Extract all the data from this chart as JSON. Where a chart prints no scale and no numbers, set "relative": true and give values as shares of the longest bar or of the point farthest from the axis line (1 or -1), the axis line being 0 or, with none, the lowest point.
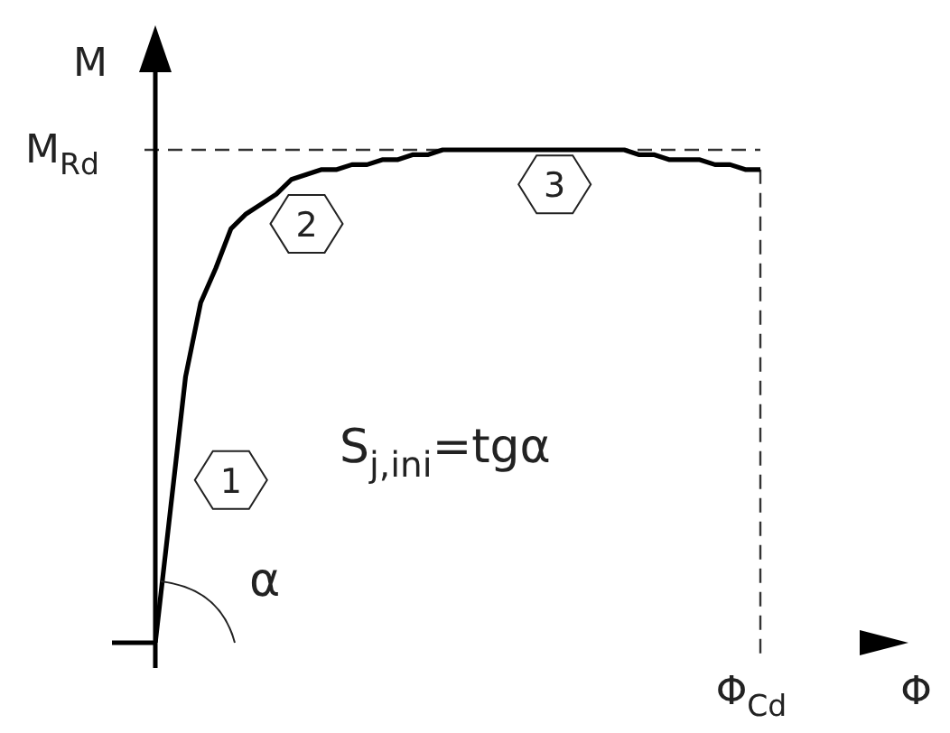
{
  "chart_data": {
    "type": "line",
    "relative": true,
    "xlabel": "Φ",
    "ylabel": "M",
    "categories": [
      null,
      null,
      null,
      null,
      null,
      null,
      null,
      null,
      null,
      null,
      null,
      null,
      null,
      null,
      null,
      null,
      null,
      null,
      null,
      null,
      null,
      null,
      null,
      null,
      null,
      null,
      null,
      null,
      null,
      null,
      null,
      null,
      null,
      null,
      null,
      null,
      null,
      null,
      null,
      null,
      null
    ],
    "series": [
      {
        "color": "#000000",
        "values": [
          0,
          0.27,
          0.54,
          0.69,
          0.76,
          0.84,
          0.87,
          0.89,
          0.91,
          0.94,
          0.95,
          0.96,
          0.96,
          0.97,
          0.97,
          0.98,
          0.98,
          0.99,
          0.99,
          1,
          1,
          1,
          1,
          1,
          1,
          1,
          1,
          1,
          1,
          1,
          1,
          1,
          0.99,
          0.99,
          0.98,
          0.98,
          0.98,
          0.97,
          0.97,
          0.96,
          0.96
        ]
      }
    ],
    "annotations": [
      "M$_{Rd}$",
      "Φ$_{Cd}$",
      "1",
      "2",
      "3",
      "S$_{j,ini}$=tgα",
      "α"
    ],
    "legend": false,
    "marker": "none",
    "line_style": "solid"
  }
}
